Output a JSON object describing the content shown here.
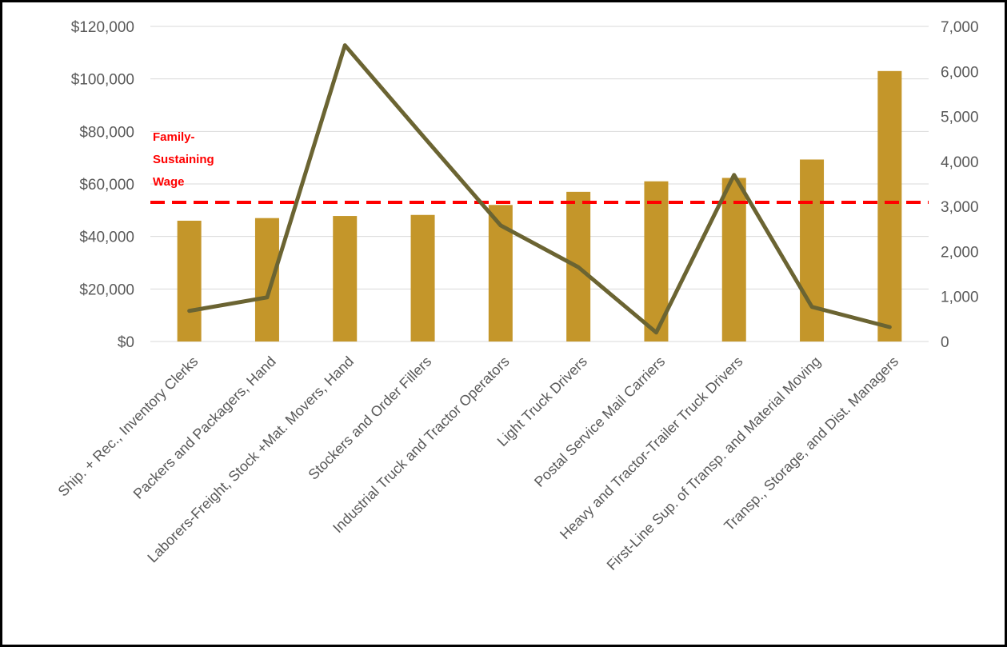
{
  "chart_data": {
    "type": "bar",
    "title": "",
    "xlabel": "",
    "ylabel": "",
    "categories": [
      "Ship. + Rec., Inventory Clerks",
      "Packers and Packagers, Hand",
      "Laborers-Freight, Stock +Mat. Movers, Hand",
      "Stockers and Order Fillers",
      "Industrial Truck and Tractor Operators",
      "Light Truck Drivers",
      "Postal Service Mail Carriers",
      "Heavy and Tractor-Trailer Truck Drivers",
      "First-Line Sup. of Transp. and Material Moving",
      "Transp., Storage, and Dist. Managers"
    ],
    "series": [
      {
        "type": "bar",
        "axis": "left",
        "color": "#C4962A",
        "values": [
          46000,
          47000,
          47800,
          48200,
          52000,
          57000,
          61000,
          62300,
          69300,
          103000
        ]
      },
      {
        "type": "line",
        "axis": "right",
        "color": "#6B6432",
        "values": [
          680,
          980,
          6580,
          4570,
          2580,
          1650,
          200,
          3700,
          770,
          320
        ]
      }
    ],
    "left_axis": {
      "min": 0,
      "max": 120000,
      "step": 20000,
      "ticks": [
        "$0",
        "$20,000",
        "$40,000",
        "$60,000",
        "$80,000",
        "$100,000",
        "$120,000"
      ]
    },
    "right_axis": {
      "min": 0,
      "max": 7000,
      "step": 1000,
      "ticks": [
        "0",
        "1,000",
        "2,000",
        "3,000",
        "4,000",
        "5,000",
        "6,000",
        "7,000"
      ]
    },
    "reference_line": {
      "value": 53000,
      "color": "#FF0000",
      "label_lines": [
        "Family-",
        "Sustaining",
        "Wage"
      ]
    },
    "grid": true,
    "legend": "none"
  }
}
